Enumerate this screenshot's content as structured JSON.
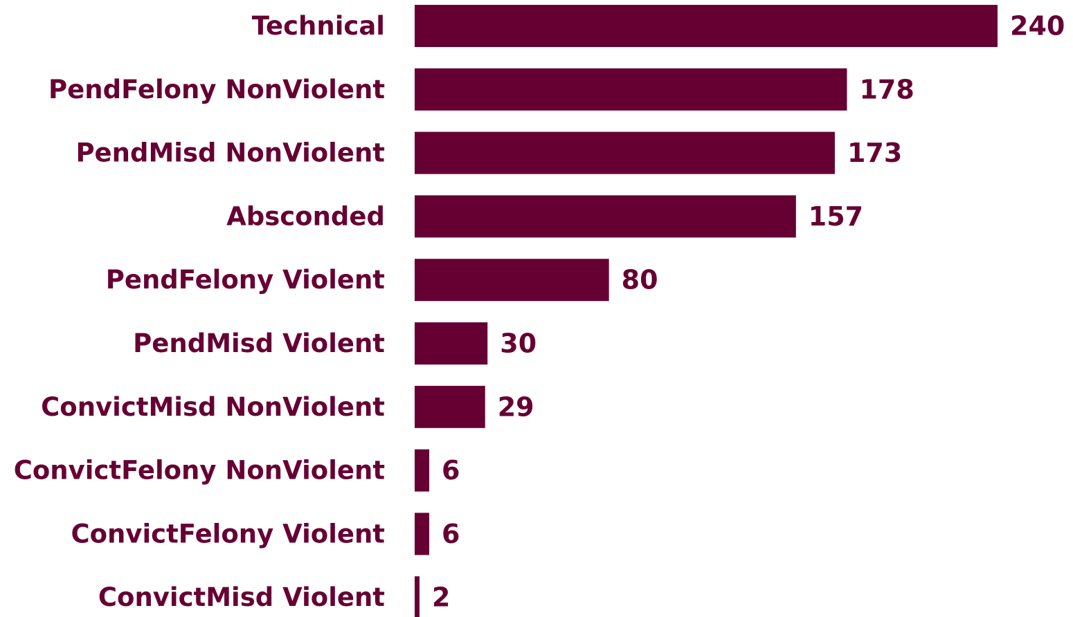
{
  "chart_data": {
    "type": "bar",
    "orientation": "horizontal",
    "categories": [
      "Technical",
      "PendFelony NonViolent",
      "PendMisd NonViolent",
      "Absconded",
      "PendFelony Violent",
      "PendMisd Violent",
      "ConvictMisd NonViolent",
      "ConvictFelony NonViolent",
      "ConvictFelony Violent",
      "ConvictMisd Violent"
    ],
    "values": [
      240,
      178,
      173,
      157,
      80,
      30,
      29,
      6,
      6,
      2
    ],
    "data_labels": [
      "240",
      "178",
      "173",
      "157",
      "80",
      "30",
      "29",
      "6",
      "6",
      "2"
    ],
    "xlim": [
      0,
      240
    ],
    "grid": false,
    "legend": "none",
    "colors": {
      "bar": "#660033",
      "text": "#660033",
      "background": "#ffffff"
    }
  }
}
